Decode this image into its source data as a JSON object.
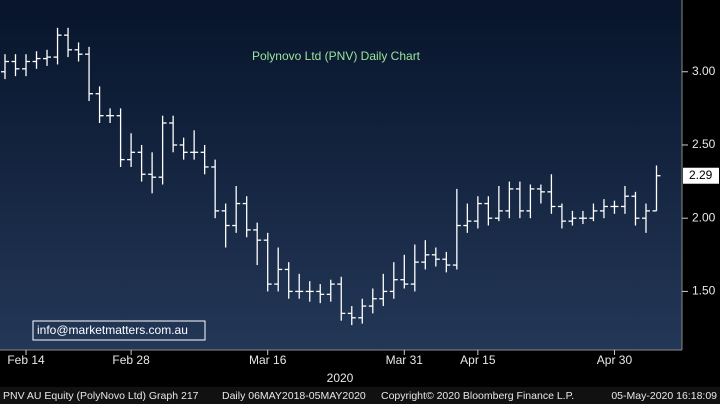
{
  "chart_data": {
    "type": "ohlc",
    "title": "Polynovo Ltd (PNV) Daily Chart",
    "annotation": "info@marketmatters.com.au",
    "last_value_label": "2.29",
    "xlabel": "2020",
    "footer": [
      "PNV AU Equity (PolyNovo Ltd) Graph 217",
      "Daily 06MAY2018-05MAY2020",
      "Copyright© 2020 Bloomberg Finance L.P.",
      "05-May-2020 16:18:09"
    ],
    "color": "#ffffff",
    "categories": [
      null,
      null,
      "Feb 14",
      null,
      null,
      null,
      null,
      null,
      null,
      null,
      null,
      null,
      "Feb 28",
      null,
      null,
      null,
      null,
      null,
      null,
      null,
      null,
      null,
      null,
      null,
      null,
      "Mar 16",
      null,
      null,
      null,
      null,
      null,
      null,
      null,
      null,
      null,
      null,
      null,
      null,
      "Mar 31",
      null,
      null,
      null,
      null,
      null,
      null,
      "Apr 15",
      null,
      null,
      null,
      null,
      null,
      null,
      null,
      null,
      null,
      null,
      null,
      null,
      "Apr 30",
      null,
      null,
      null,
      null
    ],
    "open": [
      3.0,
      3.07,
      3.02,
      3.07,
      3.09,
      3.1,
      3.25,
      3.15,
      3.12,
      2.85,
      2.7,
      2.7,
      2.4,
      2.45,
      2.3,
      2.28,
      2.65,
      2.5,
      2.45,
      2.45,
      2.35,
      2.05,
      1.95,
      2.1,
      1.92,
      1.85,
      1.55,
      1.65,
      1.5,
      1.5,
      1.5,
      1.48,
      1.55,
      1.35,
      1.32,
      1.4,
      1.45,
      1.5,
      1.58,
      1.55,
      1.7,
      1.75,
      1.72,
      1.68,
      1.95,
      1.98,
      2.1,
      2.0,
      2.05,
      2.2,
      2.05,
      2.2,
      2.18,
      2.08,
      1.98,
      2.0,
      2.0,
      2.05,
      2.08,
      2.08,
      2.15,
      2.0,
      2.05
    ],
    "high": [
      3.12,
      3.12,
      3.12,
      3.14,
      3.15,
      3.3,
      3.3,
      3.2,
      3.17,
      2.9,
      2.75,
      2.75,
      2.58,
      2.5,
      2.45,
      2.7,
      2.7,
      2.55,
      2.6,
      2.5,
      2.4,
      2.1,
      2.22,
      2.15,
      1.97,
      1.9,
      1.8,
      1.7,
      1.62,
      1.57,
      1.55,
      1.58,
      1.6,
      1.4,
      1.45,
      1.52,
      1.62,
      1.7,
      1.75,
      1.82,
      1.85,
      1.8,
      1.77,
      2.2,
      2.1,
      2.15,
      2.15,
      2.22,
      2.25,
      2.25,
      2.23,
      2.23,
      2.3,
      2.1,
      2.05,
      2.05,
      2.1,
      2.13,
      2.12,
      2.22,
      2.18,
      2.1,
      2.36
    ],
    "low": [
      2.95,
      2.97,
      2.97,
      3.02,
      3.04,
      3.05,
      3.1,
      3.07,
      2.8,
      2.65,
      2.65,
      2.35,
      2.35,
      2.25,
      2.17,
      2.23,
      2.45,
      2.4,
      2.4,
      2.3,
      2.0,
      1.8,
      1.9,
      1.87,
      1.68,
      1.5,
      1.5,
      1.45,
      1.45,
      1.43,
      1.42,
      1.43,
      1.3,
      1.27,
      1.28,
      1.35,
      1.4,
      1.45,
      1.52,
      1.5,
      1.65,
      1.67,
      1.63,
      1.65,
      1.9,
      1.93,
      1.95,
      1.98,
      2.0,
      2.0,
      2.0,
      2.1,
      2.03,
      1.93,
      1.95,
      1.96,
      1.98,
      2.0,
      2.03,
      2.03,
      1.95,
      1.9,
      2.05
    ],
    "close": [
      3.07,
      3.02,
      3.07,
      3.09,
      3.1,
      3.25,
      3.15,
      3.12,
      2.85,
      2.7,
      2.7,
      2.4,
      2.45,
      2.3,
      2.28,
      2.65,
      2.5,
      2.45,
      2.45,
      2.35,
      2.05,
      1.95,
      2.1,
      1.92,
      1.85,
      1.55,
      1.65,
      1.5,
      1.5,
      1.5,
      1.48,
      1.55,
      1.35,
      1.32,
      1.4,
      1.45,
      1.5,
      1.58,
      1.55,
      1.7,
      1.75,
      1.72,
      1.68,
      1.95,
      1.98,
      2.1,
      2.0,
      2.05,
      2.2,
      2.05,
      2.2,
      2.18,
      2.08,
      1.98,
      2.0,
      2.0,
      2.05,
      2.08,
      2.08,
      2.15,
      2.0,
      2.05,
      2.29
    ],
    "ylim": [
      1.1,
      3.49
    ],
    "yticks": [
      {
        "value": 1.5,
        "label": "1.50"
      },
      {
        "value": 2,
        "label": "2.00"
      },
      {
        "value": 2.5,
        "label": "2.50"
      },
      {
        "value": 3,
        "label": "3.00"
      }
    ]
  }
}
